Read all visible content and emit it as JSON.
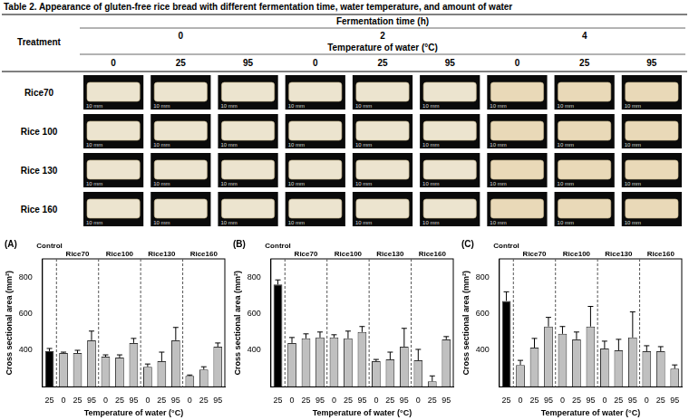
{
  "table": {
    "caption": "Table 2. Appearance of gluten-free rice bread with different fermentation time, water temperature, and amount of water",
    "header": {
      "fermentation_label": "Fermentation time (h)",
      "fermentation_times": [
        "0",
        "2",
        "4"
      ],
      "treatment_label": "Treatment",
      "temperature_label": "Temperature of water (°C)",
      "temperatures": [
        "0",
        "25",
        "95"
      ]
    },
    "rows": [
      "Rice70",
      "Rice 100",
      "Rice 130",
      "Rice 160"
    ],
    "photo_scale": "10 mm"
  },
  "chart_data": [
    {
      "type": "bar",
      "panel": "(A)",
      "x_label": "Temperature of water (°C)",
      "y_label": "Cross sectional area (mm²)",
      "categories": [
        "25",
        "0",
        "25",
        "95",
        "0",
        "25",
        "95",
        "0",
        "25",
        "95",
        "0",
        "25",
        "95"
      ],
      "groups": [
        "Control",
        "Rice70",
        "Rice70",
        "Rice70",
        "Rice100",
        "Rice100",
        "Rice100",
        "Rice130",
        "Rice130",
        "Rice130",
        "Rice160",
        "Rice160",
        "Rice160"
      ],
      "values": [
        395,
        385,
        385,
        455,
        365,
        360,
        440,
        310,
        340,
        455,
        260,
        295,
        420
      ],
      "errors": [
        15,
        5,
        15,
        50,
        10,
        15,
        25,
        15,
        50,
        70,
        5,
        15,
        20
      ],
      "colors": [
        "#000000",
        "#c0c0c0",
        "#c0c0c0",
        "#c0c0c0",
        "#c0c0c0",
        "#c0c0c0",
        "#c0c0c0",
        "#c0c0c0",
        "#c0c0c0",
        "#c0c0c0",
        "#c0c0c0",
        "#c0c0c0",
        "#c0c0c0"
      ],
      "ylim": [
        200,
        900
      ],
      "yticks": [
        400,
        600,
        800
      ],
      "grid": false
    },
    {
      "type": "bar",
      "panel": "(B)",
      "x_label": "Temperature of water (°C)",
      "y_label": "Cross sectional area (mm²)",
      "categories": [
        "25",
        "0",
        "25",
        "95",
        "0",
        "25",
        "95",
        "0",
        "25",
        "95",
        "0",
        "25",
        "95"
      ],
      "groups": [
        "Control",
        "Rice70",
        "Rice70",
        "Rice70",
        "Rice100",
        "Rice100",
        "Rice100",
        "Rice130",
        "Rice130",
        "Rice130",
        "Rice160",
        "Rice160",
        "Rice160"
      ],
      "values": [
        760,
        440,
        465,
        470,
        470,
        465,
        500,
        340,
        350,
        420,
        345,
        230,
        460
      ],
      "errors": [
        25,
        30,
        25,
        30,
        15,
        40,
        30,
        10,
        40,
        100,
        60,
        30,
        15
      ],
      "colors": [
        "#000000",
        "#c0c0c0",
        "#c0c0c0",
        "#c0c0c0",
        "#c0c0c0",
        "#c0c0c0",
        "#c0c0c0",
        "#c0c0c0",
        "#c0c0c0",
        "#c0c0c0",
        "#c0c0c0",
        "#c0c0c0",
        "#c0c0c0"
      ],
      "ylim": [
        200,
        900
      ],
      "yticks": [
        400,
        600,
        800
      ],
      "grid": false
    },
    {
      "type": "bar",
      "panel": "(C)",
      "x_label": "Temperature of water (°C)",
      "y_label": "Cross sectional area (mm²)",
      "categories": [
        "25",
        "0",
        "25",
        "95",
        "0",
        "25",
        "95",
        "0",
        "25",
        "95",
        "0",
        "25",
        "95"
      ],
      "groups": [
        "Control",
        "Rice70",
        "Rice70",
        "Rice70",
        "Rice100",
        "Rice100",
        "Rice100",
        "Rice130",
        "Rice130",
        "Rice130",
        "Rice160",
        "Rice160",
        "Rice160"
      ],
      "values": [
        670,
        320,
        415,
        530,
        490,
        460,
        530,
        410,
        400,
        470,
        395,
        395,
        300
      ],
      "errors": [
        50,
        25,
        50,
        50,
        40,
        40,
        110,
        40,
        60,
        140,
        30,
        25,
        20
      ],
      "colors": [
        "#000000",
        "#c0c0c0",
        "#c0c0c0",
        "#c0c0c0",
        "#c0c0c0",
        "#c0c0c0",
        "#c0c0c0",
        "#c0c0c0",
        "#c0c0c0",
        "#c0c0c0",
        "#c0c0c0",
        "#c0c0c0",
        "#c0c0c0"
      ],
      "ylim": [
        200,
        900
      ],
      "yticks": [
        400,
        600,
        800
      ],
      "grid": false
    }
  ]
}
